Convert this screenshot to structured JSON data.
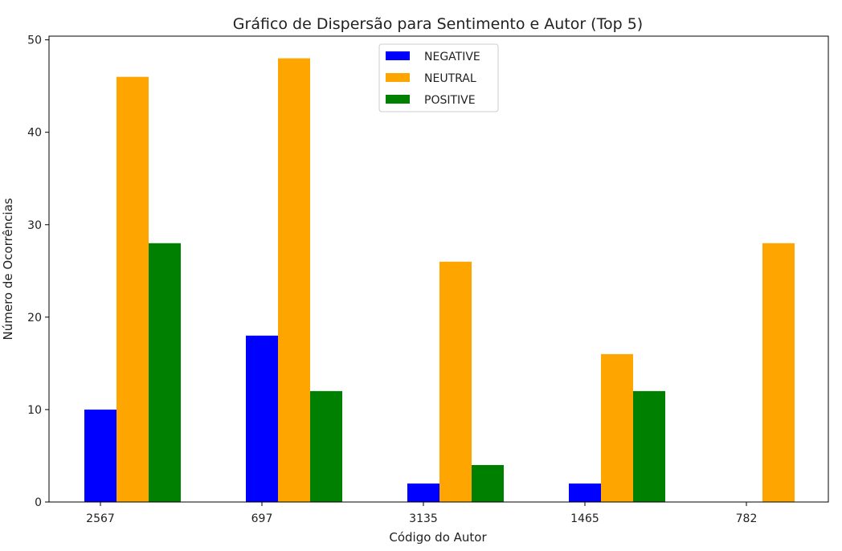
{
  "chart_data": {
    "type": "bar",
    "title": "Gráfico de Dispersão para Sentimento e Autor (Top 5)",
    "xlabel": "Código do Autor",
    "ylabel": "Número de Ocorrências",
    "categories": [
      "2567",
      "697",
      "3135",
      "1465",
      "782"
    ],
    "series": [
      {
        "name": "NEGATIVE",
        "color": "#0000ff",
        "values": [
          10,
          18,
          2,
          2,
          0
        ]
      },
      {
        "name": "NEUTRAL",
        "color": "#ffa500",
        "values": [
          46,
          48,
          26,
          16,
          28
        ]
      },
      {
        "name": "POSITIVE",
        "color": "#008000",
        "values": [
          28,
          12,
          4,
          12,
          0
        ]
      }
    ],
    "ylim": [
      0,
      50.4
    ],
    "yticks": [
      0,
      10,
      20,
      30,
      40,
      50
    ],
    "grid": false,
    "legend": "top-center"
  }
}
